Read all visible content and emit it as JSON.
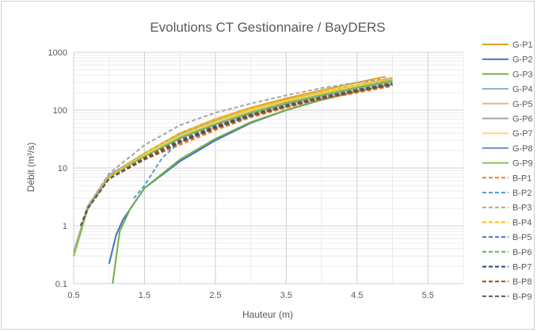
{
  "chart_data": {
    "type": "line",
    "title": "Evolutions CT Gestionnaire / BayDERS",
    "xlabel": "Hauteur (m)",
    "ylabel": "Débit (m³/s)",
    "xlim": [
      0.5,
      6.0
    ],
    "ylim": [
      0.1,
      1000
    ],
    "y_scale": "log",
    "x_ticks": [
      "0.5",
      "1.5",
      "2.5",
      "3.5",
      "4.5",
      "5.5"
    ],
    "y_ticks": [
      "0.1",
      "1",
      "10",
      "100",
      "1000"
    ],
    "grid": true,
    "legend_position": "right",
    "series": [
      {
        "name": "G-P1",
        "color": "#e2a21a",
        "dash": false,
        "x": [
          0.5,
          0.7,
          1.0,
          1.5,
          2.0,
          2.5,
          3.0,
          3.5,
          4.0,
          4.5,
          4.9
        ],
        "y": [
          0.3,
          2.0,
          7.0,
          18,
          40,
          70,
          110,
          160,
          220,
          300,
          380
        ]
      },
      {
        "name": "G-P2",
        "color": "#4472c4",
        "dash": false,
        "x": [
          1.0,
          1.1,
          1.2,
          1.5,
          2.0,
          2.5,
          3.0,
          3.5,
          4.0,
          4.5,
          5.0
        ],
        "y": [
          0.22,
          0.7,
          1.3,
          4.5,
          13,
          30,
          60,
          100,
          150,
          210,
          280
        ]
      },
      {
        "name": "G-P3",
        "color": "#70ad47",
        "dash": false,
        "x": [
          1.05,
          1.15,
          1.3,
          1.5,
          2.0,
          2.5,
          3.0,
          3.5,
          4.0,
          4.5,
          5.0
        ],
        "y": [
          0.1,
          0.8,
          2.0,
          4.5,
          14,
          32,
          62,
          100,
          150,
          210,
          280
        ]
      },
      {
        "name": "G-P4",
        "color": "#8faadc",
        "dash": false,
        "x": [
          0.5,
          0.7,
          1.0,
          1.5,
          2.0,
          2.5,
          3.0,
          3.5,
          4.0,
          4.5,
          5.0
        ],
        "y": [
          0.3,
          2.0,
          7.0,
          17,
          35,
          60,
          95,
          140,
          190,
          260,
          340
        ]
      },
      {
        "name": "G-P5",
        "color": "#f4b183",
        "dash": false,
        "x": [
          0.5,
          0.7,
          1.0,
          1.5,
          2.0,
          2.5,
          3.0,
          3.5,
          4.0,
          4.5,
          5.0
        ],
        "y": [
          0.3,
          2.0,
          7.0,
          16,
          32,
          55,
          85,
          125,
          170,
          230,
          300
        ]
      },
      {
        "name": "G-P6",
        "color": "#a5a5a5",
        "dash": false,
        "x": [
          0.5,
          0.7,
          1.0,
          1.5,
          2.0,
          2.5,
          3.0,
          3.5,
          4.0,
          4.5,
          5.0
        ],
        "y": [
          0.35,
          2.2,
          7.5,
          18,
          38,
          65,
          100,
          150,
          200,
          270,
          360
        ]
      },
      {
        "name": "G-P7",
        "color": "#ffd966",
        "dash": false,
        "x": [
          0.5,
          0.7,
          1.0,
          1.5,
          2.0,
          2.5,
          3.0,
          3.5,
          4.0,
          4.5,
          5.0
        ],
        "y": [
          0.3,
          2.0,
          7.0,
          17,
          36,
          62,
          98,
          145,
          195,
          265,
          350
        ]
      },
      {
        "name": "G-P8",
        "color": "#6f8fd2",
        "dash": false,
        "x": [
          0.5,
          0.7,
          1.0,
          1.5,
          2.0,
          2.5,
          3.0,
          3.5,
          4.0,
          4.5,
          5.0
        ],
        "y": [
          0.3,
          2.0,
          7.0,
          16,
          33,
          57,
          90,
          130,
          180,
          245,
          320
        ]
      },
      {
        "name": "G-P9",
        "color": "#8bc34a",
        "dash": false,
        "x": [
          0.5,
          0.7,
          1.0,
          1.5,
          2.0,
          2.5,
          3.0,
          3.5,
          4.0,
          4.5,
          5.0
        ],
        "y": [
          0.3,
          2.0,
          7.0,
          16,
          34,
          58,
          92,
          135,
          185,
          250,
          330
        ]
      },
      {
        "name": "B-P1",
        "color": "#ed7d31",
        "dash": true,
        "x": [
          0.6,
          0.7,
          1.0,
          1.5,
          2.0,
          2.5,
          3.0,
          3.5,
          4.0,
          4.5,
          5.0
        ],
        "y": [
          1.0,
          2.0,
          6.5,
          14,
          25,
          45,
          75,
          110,
          155,
          200,
          260
        ]
      },
      {
        "name": "B-P2",
        "color": "#5b9bd5",
        "dash": true,
        "x": [
          1.35,
          1.5,
          1.75,
          2.0,
          2.5,
          3.0,
          3.5,
          4.0,
          4.5,
          5.0
        ],
        "y": [
          3.0,
          5.0,
          15,
          28,
          50,
          80,
          115,
          160,
          215,
          280
        ]
      },
      {
        "name": "B-P3",
        "color": "#a5a5a5",
        "dash": true,
        "x": [
          0.6,
          0.7,
          1.0,
          1.5,
          2.0,
          2.5,
          3.0,
          3.5,
          4.0,
          4.5,
          5.0
        ],
        "y": [
          1.0,
          2.2,
          8.0,
          25,
          55,
          90,
          130,
          180,
          240,
          300,
          360
        ]
      },
      {
        "name": "B-P4",
        "color": "#ffc000",
        "dash": true,
        "x": [
          0.6,
          0.7,
          1.0,
          1.5,
          2.0,
          2.5,
          3.0,
          3.5,
          4.0,
          4.5,
          5.0
        ],
        "y": [
          1.0,
          2.0,
          7.0,
          18,
          40,
          68,
          105,
          150,
          205,
          275,
          350
        ]
      },
      {
        "name": "B-P5",
        "color": "#4472c4",
        "dash": true,
        "x": [
          0.6,
          0.7,
          1.0,
          1.5,
          2.0,
          2.5,
          3.0,
          3.5,
          4.0,
          4.5,
          5.0
        ],
        "y": [
          1.0,
          2.0,
          6.5,
          15,
          30,
          52,
          82,
          120,
          165,
          225,
          290
        ]
      },
      {
        "name": "B-P6",
        "color": "#70ad47",
        "dash": true,
        "x": [
          0.6,
          0.7,
          1.0,
          1.5,
          2.0,
          2.5,
          3.0,
          3.5,
          4.0,
          4.5,
          5.0
        ],
        "y": [
          1.0,
          2.0,
          6.5,
          15,
          31,
          54,
          85,
          125,
          170,
          230,
          300
        ]
      },
      {
        "name": "B-P7",
        "color": "#264478",
        "dash": true,
        "x": [
          0.6,
          0.7,
          1.0,
          1.5,
          2.0,
          2.5,
          3.0,
          3.5,
          4.0,
          4.5,
          5.0
        ],
        "y": [
          1.0,
          2.0,
          6.5,
          14,
          28,
          50,
          80,
          118,
          160,
          215,
          280
        ]
      },
      {
        "name": "B-P8",
        "color": "#9e480e",
        "dash": true,
        "x": [
          0.6,
          0.7,
          1.0,
          1.5,
          2.0,
          2.5,
          3.0,
          3.5,
          4.0,
          4.5,
          5.0
        ],
        "y": [
          1.0,
          2.0,
          6.5,
          14,
          27,
          48,
          78,
          115,
          158,
          210,
          270
        ]
      },
      {
        "name": "B-P9",
        "color": "#595959",
        "dash": true,
        "x": [
          0.6,
          0.7,
          1.0,
          1.5,
          2.0,
          2.5,
          3.0,
          3.5,
          4.0,
          4.5,
          5.0
        ],
        "y": [
          1.0,
          2.0,
          6.5,
          15,
          30,
          53,
          84,
          122,
          168,
          225,
          290
        ]
      }
    ]
  }
}
